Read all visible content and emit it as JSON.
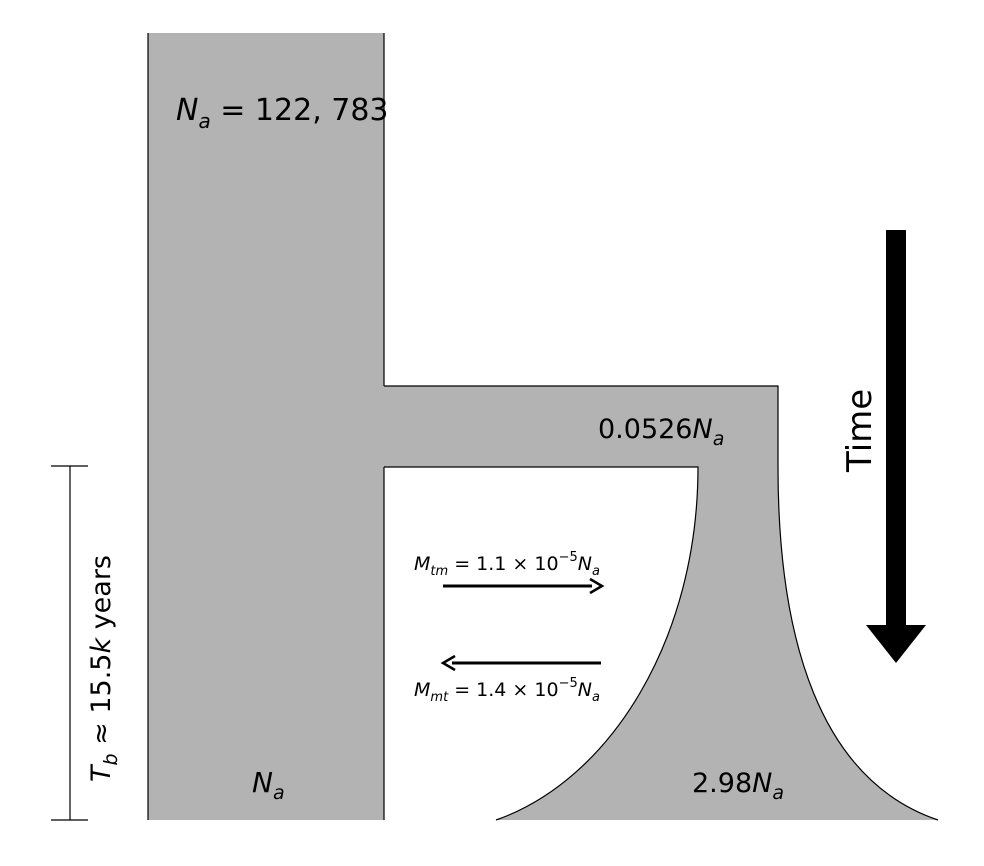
{
  "diagram": {
    "ancestral_label": {
      "symbol": "N",
      "sub": "a",
      "rest": " = 122, 783"
    },
    "bottleneck_label": {
      "prefix": "0.0526",
      "symbol": "N",
      "sub": "a"
    },
    "left_bottom_label": {
      "symbol": "N",
      "sub": "a"
    },
    "right_bottom_label": {
      "prefix": "2.98",
      "symbol": "N",
      "sub": "a"
    },
    "migration_forward": {
      "symbol": "M",
      "sub": "tm",
      "rest": " = 1.1 × 10",
      "exp": "−5",
      "tail_symbol": "N",
      "tail_sub": "a"
    },
    "migration_backward": {
      "symbol": "M",
      "sub": "mt",
      "rest": " = 1.4 × 10",
      "exp": "−5",
      "tail_symbol": "N",
      "tail_sub": "a"
    },
    "time_label": "Time",
    "duration_label": {
      "symbol": "T",
      "sub": "b",
      "rest": " ≈ 15.5",
      "unit_symbol": "k",
      "unit_rest": " years"
    },
    "colors": {
      "population_fill": "#b3b3b3",
      "stroke": "#000000"
    }
  }
}
